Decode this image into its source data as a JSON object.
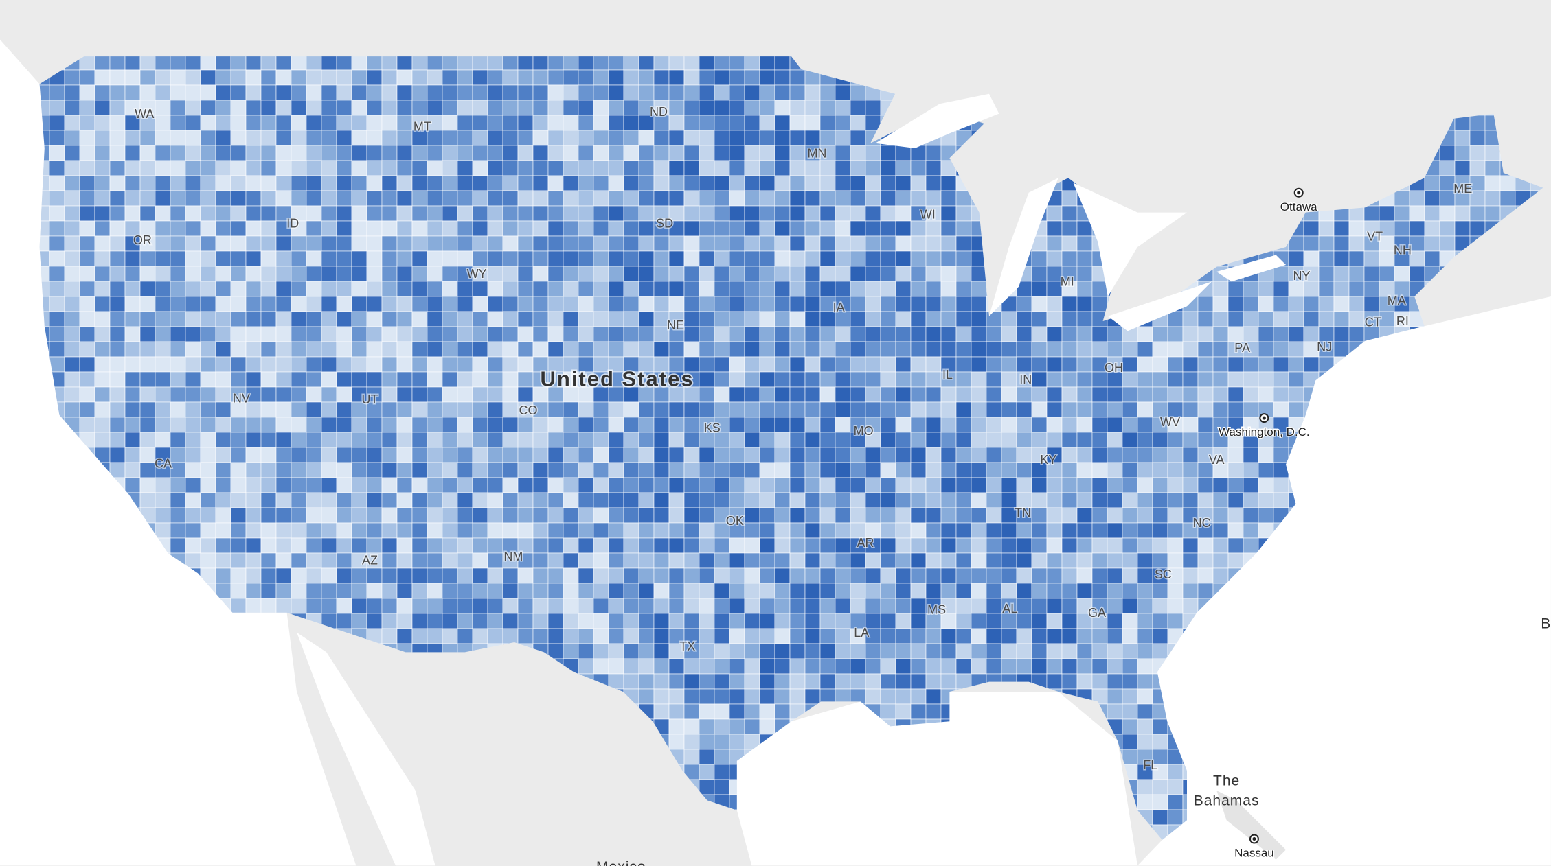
{
  "map": {
    "country_label": "United States",
    "state_labels": [
      "WA",
      "MT",
      "ND",
      "MN",
      "ID",
      "OR",
      "SD",
      "WI",
      "WY",
      "MI",
      "IA",
      "NE",
      "NV",
      "UT",
      "CO",
      "KS",
      "MO",
      "IL",
      "IN",
      "OH",
      "KY",
      "WV",
      "VA",
      "PA",
      "NY",
      "VT",
      "NH",
      "ME",
      "MA",
      "CT",
      "RI",
      "NJ",
      "CA",
      "AZ",
      "NM",
      "OK",
      "TX",
      "AR",
      "LA",
      "MS",
      "AL",
      "TN",
      "GA",
      "SC",
      "NC",
      "FL"
    ],
    "places": [
      "Ottawa",
      "Washington, D.C.",
      "Nassau"
    ],
    "region_labels": [
      [
        "The",
        "Bahamas"
      ],
      [
        "Mexico"
      ],
      [
        "B"
      ]
    ]
  }
}
